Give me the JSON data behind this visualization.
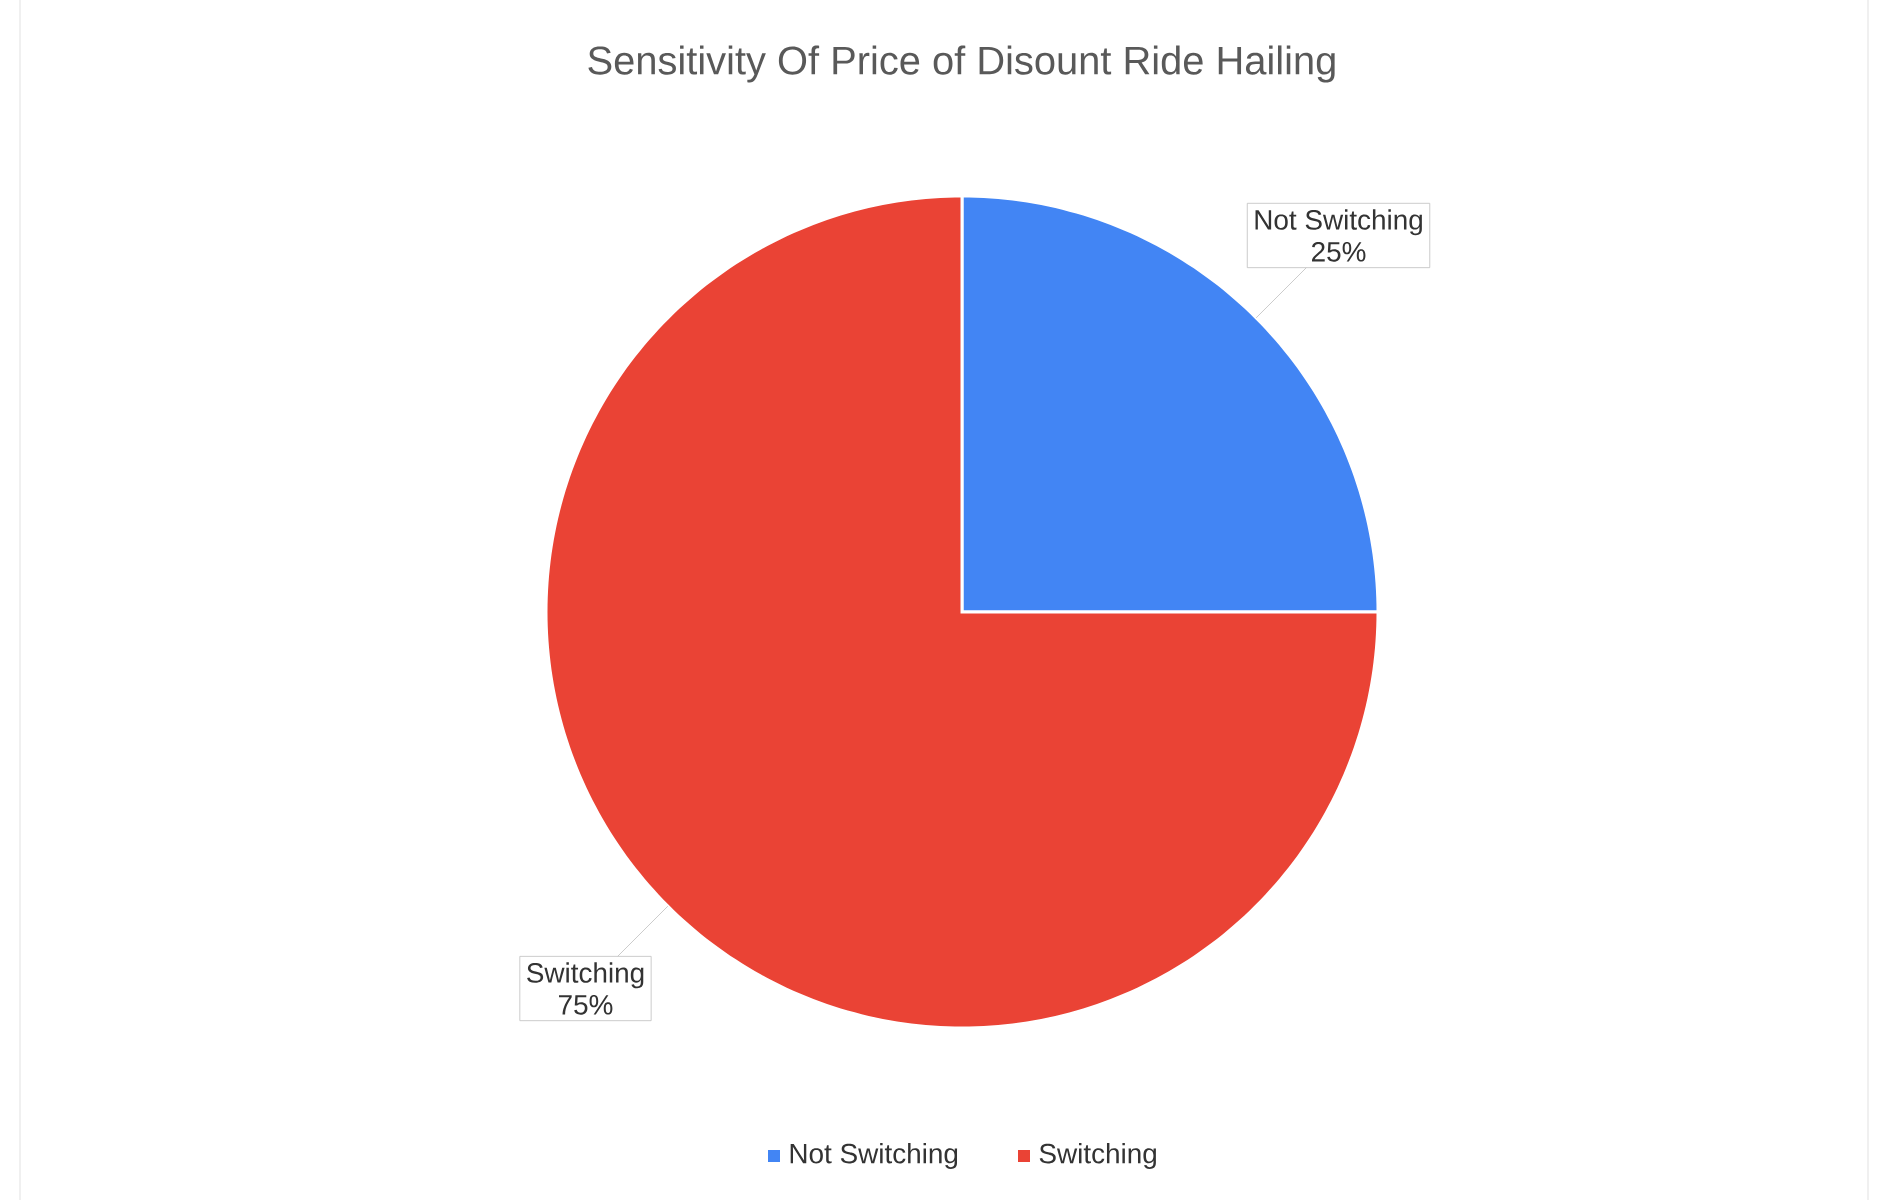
{
  "chart_data": {
    "type": "pie",
    "title": "Sensitivity Of Price of Disount Ride Hailing",
    "categories": [
      "Not Switching",
      "Switching"
    ],
    "values": [
      25,
      75
    ],
    "value_labels": [
      "25%",
      "75%"
    ],
    "colors": [
      "#4285f4",
      "#ea4335"
    ],
    "legend": "bottom"
  }
}
